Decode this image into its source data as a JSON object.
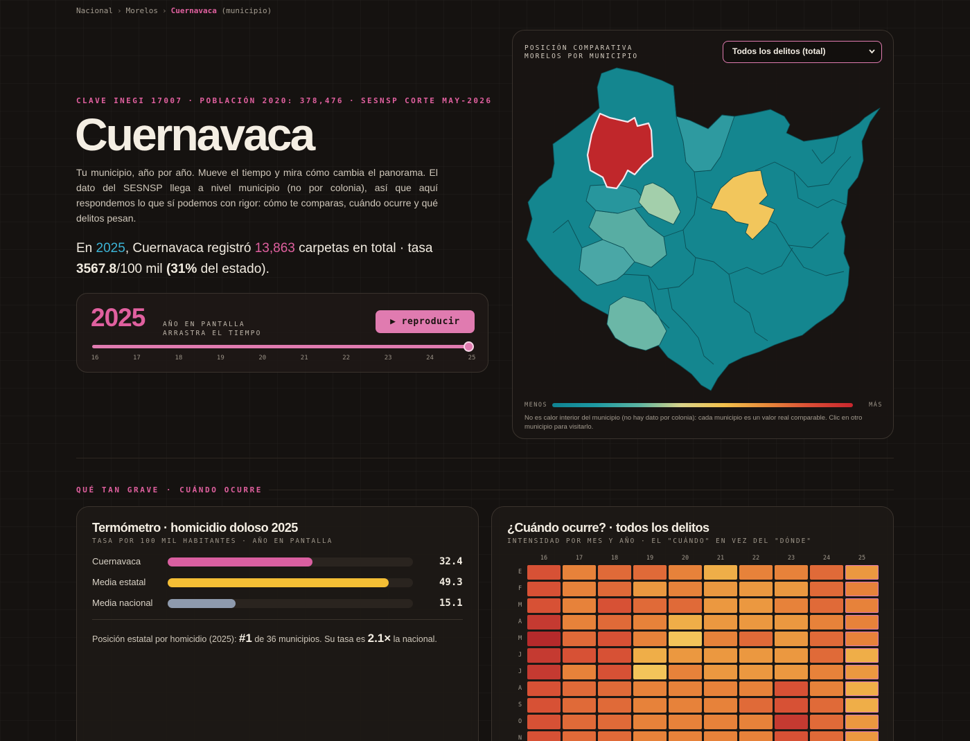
{
  "breadcrumb": {
    "nacional": "Nacional",
    "estado": "Morelos",
    "municipio": "Cuernavaca",
    "tipo": "(municipio)",
    "sep": "›"
  },
  "hero": {
    "kicker": [
      "CLAVE INEGI 17007",
      "POBLACIÓN 2020: 378,476",
      "SESNSP CORTE MAY-2026"
    ],
    "kicker_sep": "·",
    "title": "Cuernavaca",
    "intro": "Tu municipio, año por año. Mueve el tiempo y mira cómo cambia el panorama. El dato del SESNSP llega a nivel municipio (no por colonia), así que aquí respondemos lo que sí podemos con rigor: cómo te comparas, cuándo ocurre y qué delitos pesan.",
    "summary": {
      "p1": "En ",
      "year": "2025",
      "p2": ", Cuernavaca registró ",
      "count": "13,863",
      "p3": " carpetas en total · tasa ",
      "rate": "3567.8",
      "p4": "/100 mil ",
      "share": "(31%",
      "p5": " del estado)."
    }
  },
  "timeline": {
    "year": "2025",
    "label1": "AÑO EN PANTALLA",
    "label2": "ARRASTRA EL TIEMPO",
    "play_icon": "▶",
    "play_label": "reproducir",
    "value": 2025,
    "min": 2016,
    "max": 2025,
    "ticks": [
      "16",
      "17",
      "18",
      "19",
      "20",
      "21",
      "22",
      "23",
      "24",
      "25"
    ]
  },
  "map": {
    "header1": "POSICIÓN COMPARATIVA",
    "header2": "MORELOS POR MUNICIPIO",
    "select_value": "Todos los delitos (total)",
    "select_icon": "chevron-down-icon",
    "legend_low": "MENOS",
    "legend_high": "MÁS",
    "note": "No es calor interior del municipio (no hay dato por colonia): cada municipio es un valor real comparable. Clic en otro municipio para visitarlo.",
    "colors": {
      "selected": "#c0272b",
      "high": "#f2c65c",
      "mid": "#9ccaa8",
      "low": "#1a8f98",
      "base": "#14868f"
    }
  },
  "section": {
    "a": "QUÉ TAN GRAVE",
    "sep": "·",
    "b": "CUÁNDO OCURRE"
  },
  "thermo": {
    "title": "Termómetro · homicidio doloso 2025",
    "subtitle": "TASA POR 100 MIL HABITANTES · AÑO EN PANTALLA",
    "rows": [
      {
        "label": "Cuernavaca",
        "value": "32.4",
        "num": 32.4,
        "color": "#d95fa0"
      },
      {
        "label": "Media estatal",
        "value": "49.3",
        "num": 49.3,
        "color": "#f4be35"
      },
      {
        "label": "Media nacional",
        "value": "15.1",
        "num": 15.1,
        "color": "#8e9aad"
      }
    ],
    "rank": {
      "p1": "Posición estatal por homicidio (2025): ",
      "pos": "#1",
      "p2": " de 36 municipios. Su tasa es ",
      "mult": "2.1×",
      "p3": " la nacional."
    }
  },
  "heatmap": {
    "title": "¿Cuándo ocurre? · todos los delitos",
    "subtitle": "INTENSIDAD POR MES Y AÑO · EL \"CUÁNDO\" EN VEZ DEL \"DÓNDE\"",
    "years": [
      "16",
      "17",
      "18",
      "19",
      "20",
      "21",
      "22",
      "23",
      "24",
      "25"
    ],
    "months": [
      "E",
      "F",
      "M",
      "A",
      "M",
      "J",
      "J",
      "A",
      "S",
      "O",
      "N"
    ],
    "highlight_year": "25",
    "levels": [
      [
        6,
        4,
        5,
        5,
        4,
        2,
        4,
        4,
        5,
        3
      ],
      [
        6,
        4,
        5,
        3,
        4,
        3,
        3,
        3,
        5,
        4
      ],
      [
        6,
        4,
        6,
        5,
        5,
        3,
        3,
        4,
        5,
        4
      ],
      [
        7,
        4,
        5,
        4,
        2,
        3,
        3,
        3,
        4,
        4
      ],
      [
        8,
        5,
        6,
        4,
        1,
        4,
        5,
        3,
        5,
        4
      ],
      [
        7,
        6,
        6,
        2,
        3,
        3,
        3,
        3,
        5,
        2
      ],
      [
        7,
        4,
        6,
        1,
        4,
        3,
        3,
        3,
        4,
        3
      ],
      [
        6,
        5,
        5,
        4,
        4,
        4,
        4,
        6,
        4,
        2
      ],
      [
        6,
        5,
        5,
        4,
        4,
        4,
        5,
        6,
        5,
        2
      ],
      [
        6,
        5,
        5,
        4,
        4,
        4,
        4,
        7,
        5,
        3
      ],
      [
        6,
        5,
        5,
        4,
        4,
        4,
        4,
        6,
        5,
        3
      ]
    ],
    "palette": [
      "#f0d774",
      "#f3c45a",
      "#efae48",
      "#eb9840",
      "#e7823a",
      "#e06a38",
      "#d75135",
      "#c53a31",
      "#b52a2b"
    ]
  }
}
